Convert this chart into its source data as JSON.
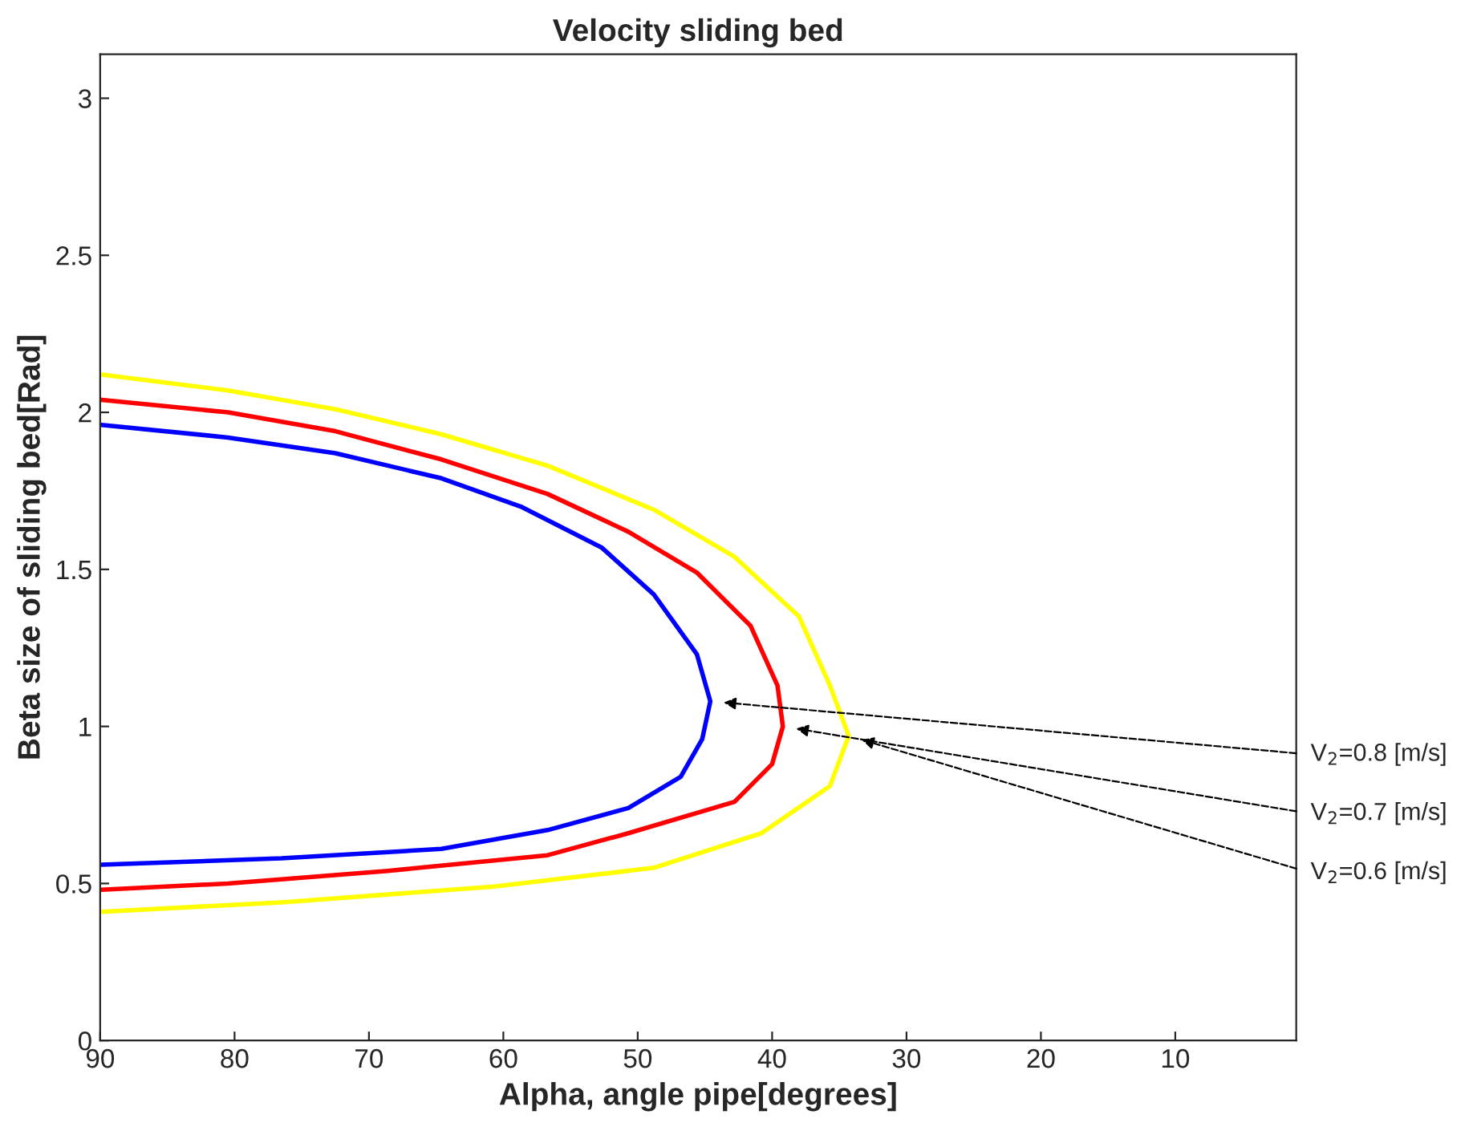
{
  "chart_data": {
    "type": "line",
    "title": "Velocity sliding bed",
    "xlabel": "Alpha, angle pipe[degrees]",
    "ylabel": "Beta size of sliding bed[Rad]",
    "xlim": [
      90,
      1
    ],
    "ylim": [
      0,
      3.14
    ],
    "xticks": [
      90,
      80,
      70,
      60,
      50,
      40,
      30,
      20,
      10
    ],
    "yticks": [
      0,
      0.5,
      1,
      1.5,
      2,
      2.5,
      3
    ],
    "grid": false,
    "legend": false,
    "marker": "none",
    "line_style": "solid",
    "series": [
      {
        "color": "#0000ff",
        "x": [
          89.9,
          80.5,
          72.5,
          64.6,
          58.7,
          52.7,
          48.8,
          45.6,
          44.6,
          45.2,
          46.8,
          50.7,
          56.7,
          64.6,
          76.5,
          89.9
        ],
        "values": [
          1.96,
          1.92,
          1.87,
          1.79,
          1.7,
          1.57,
          1.42,
          1.23,
          1.08,
          0.96,
          0.84,
          0.74,
          0.67,
          0.61,
          0.58,
          0.56
        ]
      },
      {
        "color": "#ff0000",
        "x": [
          89.9,
          80.5,
          72.5,
          64.6,
          56.7,
          50.7,
          45.6,
          41.6,
          39.6,
          39.2,
          40.0,
          42.8,
          50.7,
          56.7,
          68.6,
          80.5,
          89.9
        ],
        "values": [
          2.04,
          2.0,
          1.94,
          1.85,
          1.74,
          1.62,
          1.49,
          1.32,
          1.13,
          1.0,
          0.88,
          0.76,
          0.66,
          0.59,
          0.54,
          0.5,
          0.48
        ]
      },
      {
        "color": "#ffff00",
        "x": [
          89.9,
          80.5,
          72.5,
          64.6,
          56.7,
          48.8,
          42.8,
          38.0,
          35.7,
          34.3,
          35.7,
          40.8,
          48.8,
          60.7,
          76.5,
          89.9
        ],
        "values": [
          2.12,
          2.07,
          2.01,
          1.93,
          1.83,
          1.69,
          1.54,
          1.35,
          1.13,
          0.97,
          0.81,
          0.66,
          0.55,
          0.49,
          0.44,
          0.41
        ]
      }
    ],
    "annotations": [
      "V$_{2}$=0.8 [m/s]",
      "V$_{2}$=0.7 [m/s]",
      "V$_{2}$=0.6 [m/s]"
    ]
  }
}
